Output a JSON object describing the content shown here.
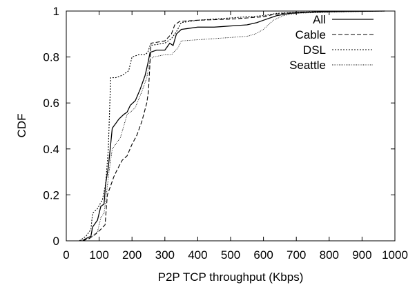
{
  "chart_data": {
    "type": "line",
    "xlabel": "P2P TCP throughput (Kbps)",
    "ylabel": "CDF",
    "xlim": [
      0,
      1000
    ],
    "ylim": [
      0,
      1
    ],
    "x_ticks": [
      "0",
      "100",
      "200",
      "300",
      "400",
      "500",
      "600",
      "700",
      "800",
      "900",
      "1000"
    ],
    "y_ticks": [
      "0",
      "0.2",
      "0.4",
      "0.6",
      "0.8",
      "1"
    ],
    "grid": false,
    "legend_position": "top-right",
    "series": [
      {
        "name": "All",
        "style": "solid",
        "points": [
          [
            50,
            0
          ],
          [
            60,
            0.01
          ],
          [
            75,
            0.02
          ],
          [
            80,
            0.06
          ],
          [
            95,
            0.09
          ],
          [
            105,
            0.15
          ],
          [
            115,
            0.16
          ],
          [
            120,
            0.25
          ],
          [
            128,
            0.32
          ],
          [
            135,
            0.42
          ],
          [
            140,
            0.49
          ],
          [
            150,
            0.51
          ],
          [
            160,
            0.53
          ],
          [
            175,
            0.55
          ],
          [
            185,
            0.56
          ],
          [
            195,
            0.59
          ],
          [
            210,
            0.61
          ],
          [
            225,
            0.66
          ],
          [
            240,
            0.72
          ],
          [
            248,
            0.77
          ],
          [
            255,
            0.82
          ],
          [
            275,
            0.83
          ],
          [
            300,
            0.83
          ],
          [
            315,
            0.86
          ],
          [
            325,
            0.85
          ],
          [
            335,
            0.9
          ],
          [
            350,
            0.92
          ],
          [
            400,
            0.93
          ],
          [
            450,
            0.93
          ],
          [
            500,
            0.935
          ],
          [
            550,
            0.94
          ],
          [
            580,
            0.95
          ],
          [
            600,
            0.96
          ],
          [
            640,
            0.98
          ],
          [
            680,
            0.99
          ],
          [
            740,
            0.995
          ],
          [
            800,
            0.997
          ],
          [
            900,
            0.999
          ],
          [
            970,
            1.0
          ]
        ]
      },
      {
        "name": "Cable",
        "style": "dashed",
        "points": [
          [
            50,
            0
          ],
          [
            70,
            0.01
          ],
          [
            80,
            0.02
          ],
          [
            90,
            0.03
          ],
          [
            105,
            0.05
          ],
          [
            118,
            0.07
          ],
          [
            125,
            0.2
          ],
          [
            135,
            0.24
          ],
          [
            145,
            0.28
          ],
          [
            155,
            0.31
          ],
          [
            170,
            0.35
          ],
          [
            185,
            0.37
          ],
          [
            200,
            0.42
          ],
          [
            215,
            0.46
          ],
          [
            230,
            0.52
          ],
          [
            245,
            0.6
          ],
          [
            250,
            0.65
          ],
          [
            258,
            0.86
          ],
          [
            300,
            0.87
          ],
          [
            320,
            0.9
          ],
          [
            330,
            0.94
          ],
          [
            345,
            0.955
          ],
          [
            400,
            0.96
          ],
          [
            500,
            0.965
          ],
          [
            550,
            0.97
          ],
          [
            600,
            0.975
          ],
          [
            630,
            0.985
          ],
          [
            660,
            0.99
          ],
          [
            720,
            0.995
          ],
          [
            800,
            0.998
          ],
          [
            970,
            1.0
          ]
        ]
      },
      {
        "name": "DSL",
        "style": "dotted",
        "points": [
          [
            40,
            0
          ],
          [
            60,
            0.02
          ],
          [
            75,
            0.05
          ],
          [
            80,
            0.12
          ],
          [
            95,
            0.14
          ],
          [
            110,
            0.18
          ],
          [
            120,
            0.25
          ],
          [
            128,
            0.4
          ],
          [
            135,
            0.71
          ],
          [
            150,
            0.71
          ],
          [
            170,
            0.72
          ],
          [
            190,
            0.74
          ],
          [
            200,
            0.8
          ],
          [
            220,
            0.81
          ],
          [
            240,
            0.81
          ],
          [
            248,
            0.82
          ],
          [
            255,
            0.85
          ],
          [
            300,
            0.86
          ],
          [
            320,
            0.88
          ],
          [
            335,
            0.91
          ],
          [
            350,
            0.95
          ],
          [
            400,
            0.96
          ],
          [
            500,
            0.97
          ],
          [
            550,
            0.975
          ],
          [
            600,
            0.98
          ],
          [
            640,
            0.99
          ],
          [
            700,
            0.995
          ],
          [
            800,
            0.998
          ],
          [
            970,
            1.0
          ]
        ]
      },
      {
        "name": "Seattle",
        "style": "fine-dotted",
        "points": [
          [
            40,
            0
          ],
          [
            60,
            0.01
          ],
          [
            80,
            0.02
          ],
          [
            95,
            0.04
          ],
          [
            105,
            0.1
          ],
          [
            115,
            0.12
          ],
          [
            122,
            0.2
          ],
          [
            130,
            0.3
          ],
          [
            140,
            0.4
          ],
          [
            155,
            0.43
          ],
          [
            165,
            0.45
          ],
          [
            175,
            0.5
          ],
          [
            185,
            0.55
          ],
          [
            195,
            0.56
          ],
          [
            210,
            0.58
          ],
          [
            230,
            0.65
          ],
          [
            245,
            0.71
          ],
          [
            255,
            0.79
          ],
          [
            265,
            0.8
          ],
          [
            300,
            0.81
          ],
          [
            320,
            0.81
          ],
          [
            340,
            0.84
          ],
          [
            350,
            0.87
          ],
          [
            400,
            0.875
          ],
          [
            450,
            0.88
          ],
          [
            500,
            0.885
          ],
          [
            550,
            0.89
          ],
          [
            575,
            0.9
          ],
          [
            600,
            0.92
          ],
          [
            630,
            0.96
          ],
          [
            660,
            0.98
          ],
          [
            700,
            0.99
          ],
          [
            800,
            0.995
          ],
          [
            970,
            1.0
          ]
        ]
      }
    ]
  }
}
